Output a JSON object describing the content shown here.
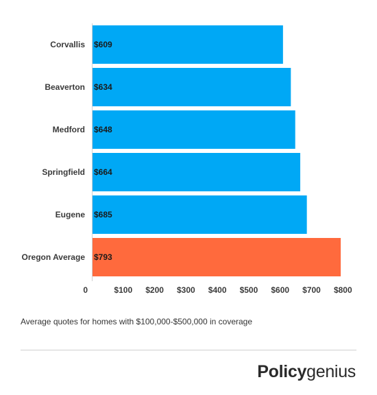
{
  "chart_data": {
    "type": "bar",
    "orientation": "horizontal",
    "categories": [
      "Corvallis",
      "Beaverton",
      "Medford",
      "Springfield",
      "Eugene",
      "Oregon Average"
    ],
    "values": [
      609,
      634,
      648,
      664,
      685,
      793
    ],
    "value_labels": [
      "$609",
      "$634",
      "$648",
      "$664",
      "$685",
      "$793"
    ],
    "bar_colors": [
      "#00a8f5",
      "#00a8f5",
      "#00a8f5",
      "#00a8f5",
      "#00a8f5",
      "#ff6a3d"
    ],
    "x_ticks": [
      0,
      100,
      200,
      300,
      400,
      500,
      600,
      700,
      800
    ],
    "x_tick_labels": [
      "0",
      "$100",
      "$200",
      "$300",
      "$400",
      "$500",
      "$600",
      "$700",
      "$800"
    ],
    "xlim": [
      0,
      843
    ],
    "xlabel": "",
    "ylabel": "",
    "title": "",
    "grid": false,
    "legend": "none"
  },
  "caption": "Average quotes for homes with $100,000-$500,000 in coverage",
  "brand": {
    "bold": "Policy",
    "light": "genius"
  }
}
